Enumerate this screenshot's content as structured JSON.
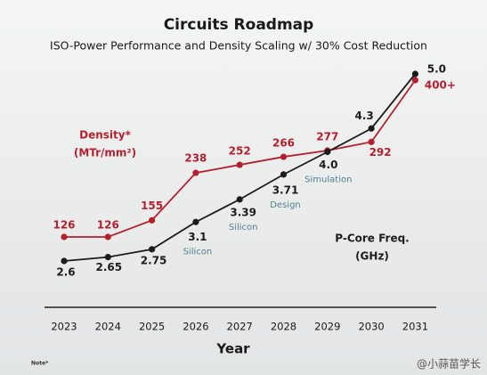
{
  "chart_data": {
    "type": "line",
    "title": "Circuits Roadmap",
    "subtitle": "ISO-Power Performance and Density Scaling w/ 30% Cost Reduction",
    "x_label": "Year",
    "categories": [
      "2023",
      "2024",
      "2025",
      "2026",
      "2027",
      "2028",
      "2029",
      "2030",
      "2031"
    ],
    "series": [
      {
        "name": "Density*",
        "units": "(MTr/mm²)",
        "color": "#b3212f",
        "values": [
          126,
          126,
          155,
          238,
          252,
          266,
          277,
          292,
          400
        ],
        "value_labels": [
          "126",
          "126",
          "155",
          "238",
          "252",
          "266",
          "277",
          "292",
          "400+"
        ]
      },
      {
        "name": "P-Core Freq.",
        "units": "(GHz)",
        "color": "#1c1c1c",
        "values": [
          2.6,
          2.65,
          2.75,
          3.1,
          3.39,
          3.71,
          4.0,
          4.3,
          5.0
        ],
        "value_labels": [
          "2.6",
          "2.65",
          "2.75",
          "3.1",
          "3.39",
          "3.71",
          "4.0",
          "4.3",
          "5.0"
        ],
        "annotations": [
          null,
          null,
          null,
          "Silicon",
          "Silicon",
          "Design",
          "Simulation",
          null,
          null
        ]
      }
    ],
    "note": "Note*",
    "watermark": "@小蒜苗学长"
  }
}
